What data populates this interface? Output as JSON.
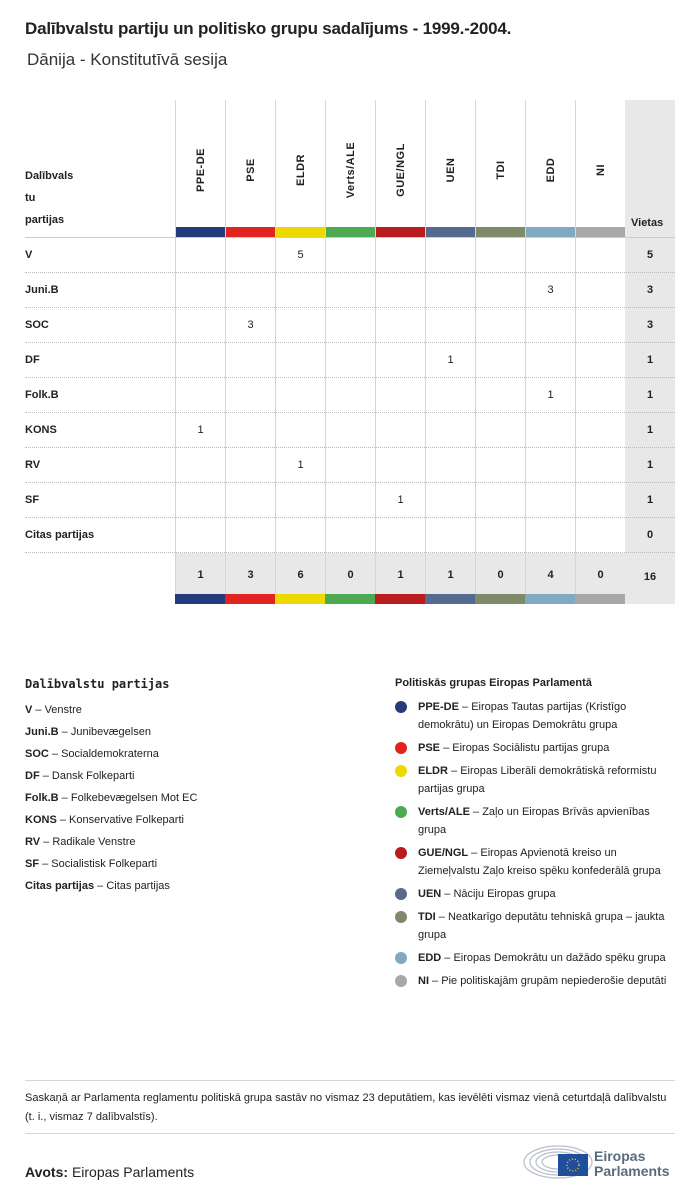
{
  "title": "Dalībvalstu partiju un politisko grupu sadalījums - 1999.-2004.",
  "subtitle": "Dānija - Konstitutīvā sesija",
  "chart_data": {
    "type": "table",
    "row_header": "Dalībvalstu partijas",
    "row_header_lines": [
      "Dalībvals",
      "tu",
      "partijas"
    ],
    "total_header": "Vietas",
    "groups": [
      {
        "code": "PPE-DE",
        "color": "#253a7c"
      },
      {
        "code": "PSE",
        "color": "#e2231f"
      },
      {
        "code": "ELDR",
        "color": "#ecd900"
      },
      {
        "code": "Verts/ALE",
        "color": "#4caa50"
      },
      {
        "code": "GUE/NGL",
        "color": "#b81c1c"
      },
      {
        "code": "UEN",
        "color": "#56698f"
      },
      {
        "code": "TDI",
        "color": "#808a6b"
      },
      {
        "code": "EDD",
        "color": "#80a9c2"
      },
      {
        "code": "NI",
        "color": "#a8a8a8"
      }
    ],
    "rows": [
      {
        "party": "V",
        "values": [
          null,
          null,
          5,
          null,
          null,
          null,
          null,
          null,
          null
        ],
        "total": 5
      },
      {
        "party": "Juni.B",
        "values": [
          null,
          null,
          null,
          null,
          null,
          null,
          null,
          3,
          null
        ],
        "total": 3
      },
      {
        "party": "SOC",
        "values": [
          null,
          3,
          null,
          null,
          null,
          null,
          null,
          null,
          null
        ],
        "total": 3
      },
      {
        "party": "DF",
        "values": [
          null,
          null,
          null,
          null,
          null,
          1,
          null,
          null,
          null
        ],
        "total": 1
      },
      {
        "party": "Folk.B",
        "values": [
          null,
          null,
          null,
          null,
          null,
          null,
          null,
          1,
          null
        ],
        "total": 1
      },
      {
        "party": "KONS",
        "values": [
          1,
          null,
          null,
          null,
          null,
          null,
          null,
          null,
          null
        ],
        "total": 1
      },
      {
        "party": "RV",
        "values": [
          null,
          null,
          1,
          null,
          null,
          null,
          null,
          null,
          null
        ],
        "total": 1
      },
      {
        "party": "SF",
        "values": [
          null,
          null,
          null,
          null,
          1,
          null,
          null,
          null,
          null
        ],
        "total": 1
      },
      {
        "party": "Citas partijas",
        "values": [
          null,
          null,
          null,
          null,
          null,
          null,
          null,
          null,
          null
        ],
        "total": 0
      }
    ],
    "group_totals": [
      1,
      3,
      6,
      0,
      1,
      1,
      0,
      4,
      0
    ],
    "grand_total": 16
  },
  "legend_parties": {
    "title": "Dalībvalstu partijas",
    "items": [
      {
        "code": "V",
        "name": "Venstre"
      },
      {
        "code": "Juni.B",
        "name": "Junibevægelsen"
      },
      {
        "code": "SOC",
        "name": "Socialdemokraterna"
      },
      {
        "code": "DF",
        "name": "Dansk Folkeparti"
      },
      {
        "code": "Folk.B",
        "name": "Folkebevægelsen Mot EC"
      },
      {
        "code": "KONS",
        "name": "Konservative Folkeparti"
      },
      {
        "code": "RV",
        "name": "Radikale Venstre"
      },
      {
        "code": "SF",
        "name": "Socialistisk Folkeparti"
      },
      {
        "code": "Citas partijas",
        "name": "Citas partijas"
      }
    ]
  },
  "legend_groups": {
    "title": "Politiskās grupas Eiropas Parlamentā",
    "items": [
      {
        "code": "PPE-DE",
        "name": "Eiropas Tautas partijas (Kristīgo demokrātu) un Eiropas Demokrātu grupa"
      },
      {
        "code": "PSE",
        "name": "Eiropas Sociālistu partijas grupa"
      },
      {
        "code": "ELDR",
        "name": "Eiropas Liberāli demokrātiskā reformistu partijas grupa"
      },
      {
        "code": "Verts/ALE",
        "name": "Zaļo un Eiropas Brīvās apvienības grupa"
      },
      {
        "code": "GUE/NGL",
        "name": "Eiropas Apvienotā kreiso un Ziemeļvalstu Zaļo kreiso spēku konfederālā grupa"
      },
      {
        "code": "UEN",
        "name": "Nāciju Eiropas grupa"
      },
      {
        "code": "TDI",
        "name": "Neatkarīgo deputātu tehniskā grupa – jaukta grupa"
      },
      {
        "code": "EDD",
        "name": "Eiropas Demokrātu un dažādo spēku grupa"
      },
      {
        "code": "NI",
        "name": "Pie politiskajām grupām nepiederošie deputāti"
      }
    ]
  },
  "note": "Saskaņā ar Parlamenta reglamentu politiskā grupa sastāv no vismaz 23 deputātiem, kas ievēlēti vismaz vienā ceturtdaļā dalībvalstu (t. i., vismaz 7 dalībvalstīs).",
  "source_label": "Avots:",
  "source": "Eiropas Parlaments",
  "logo_text": "Eiropas Parlaments"
}
